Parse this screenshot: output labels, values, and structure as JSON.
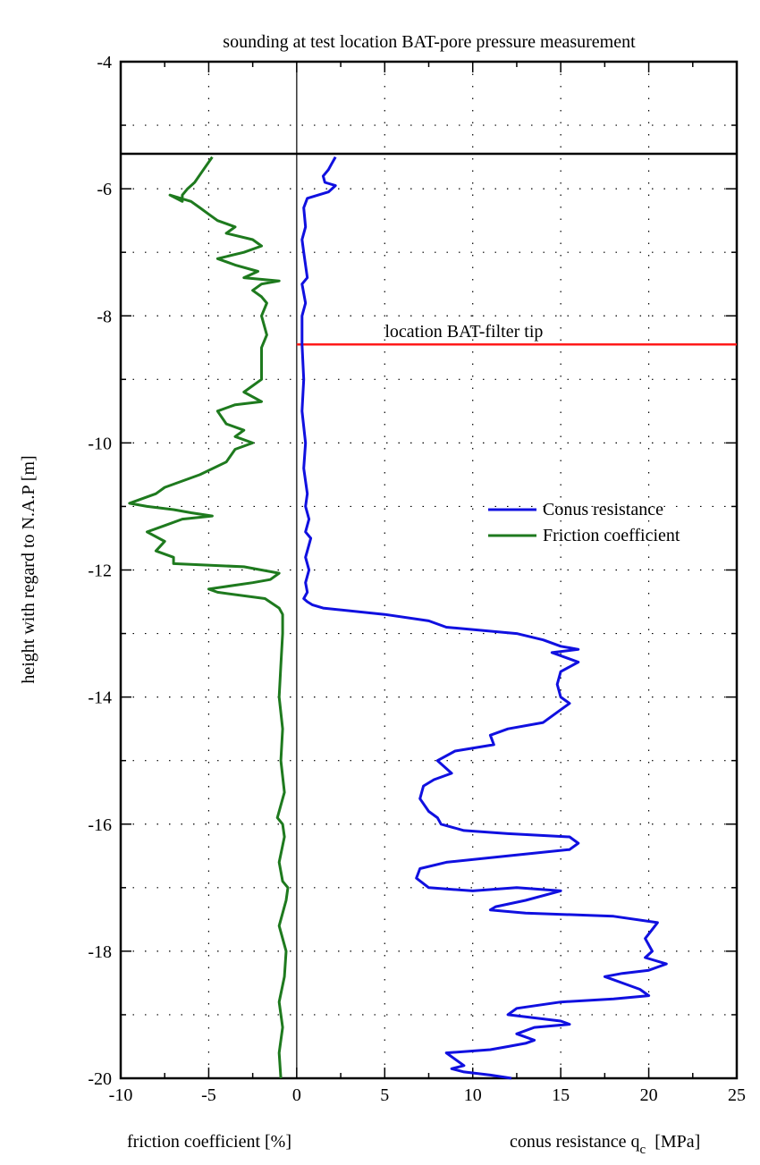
{
  "chart_data": {
    "type": "line",
    "title": "sounding at test location BAT-pore pressure measurement",
    "ylabel": "height with regard to N.A.P  [m]",
    "xlabel_left": "friction coefficient  [%]",
    "xlabel_right_main": "conus resistance q",
    "xlabel_right_sub": "c",
    "xlabel_right_unit": "[MPa]",
    "xlim": [
      -10,
      25
    ],
    "ylim": [
      -20,
      -4
    ],
    "x_ticks": [
      -10,
      -5,
      0,
      5,
      10,
      15,
      20,
      25
    ],
    "y_ticks": [
      -4,
      -6,
      -8,
      -10,
      -12,
      -14,
      -16,
      -18,
      -20
    ],
    "grid": "dotted",
    "legend_position": "center-right",
    "ground_level": -5.45,
    "filter_tip": {
      "label": "location  BAT-filter tip",
      "y": -8.45
    },
    "colors": {
      "conus": "#1010e0",
      "friction": "#1e7a1e",
      "filter": "#ff1a1a",
      "axis": "#000000"
    },
    "series": [
      {
        "name": "Conus resistance",
        "x": [
          2.2,
          2.0,
          1.8,
          1.5,
          1.6,
          2.2,
          1.8,
          0.6,
          0.4,
          0.5,
          0.3,
          0.4,
          0.6,
          0.3,
          0.5,
          0.3,
          0.3,
          0.4,
          0.3,
          0.5,
          0.4,
          0.6,
          0.5,
          0.7,
          0.5,
          0.8,
          0.6,
          0.5,
          0.7,
          0.5,
          0.6,
          0.4,
          0.6,
          0.9,
          1.5,
          5.0,
          7.5,
          8.5,
          12.5,
          14.0,
          15.0,
          16.0,
          14.5,
          16.0,
          15.0,
          14.8,
          15.0,
          15.5,
          15.0,
          14.0,
          12.0,
          11.0,
          11.2,
          9.0,
          8.0,
          8.8,
          7.8,
          7.2,
          7.0,
          7.5,
          8.0,
          8.2,
          9.5,
          12.0,
          15.5,
          16.0,
          15.5,
          12.0,
          8.5,
          7.0,
          6.8,
          7.5,
          10.0,
          12.5,
          15.0,
          13.0,
          11.3,
          11.0,
          13.0,
          18.0,
          20.5,
          19.8,
          20.2,
          19.8,
          21.0,
          20.0,
          18.5,
          17.5,
          18.5,
          19.5,
          20.0,
          18.0,
          15.0,
          12.5,
          12.0,
          15.0,
          15.5,
          13.5,
          12.5,
          13.5,
          13.0,
          12.0,
          11.0,
          8.5,
          9.0,
          9.5,
          8.8,
          9.5,
          11.0,
          12.2
        ],
        "y": [
          -5.5,
          -5.6,
          -5.7,
          -5.8,
          -5.9,
          -5.95,
          -6.05,
          -6.15,
          -6.3,
          -6.6,
          -6.8,
          -7.0,
          -7.4,
          -7.5,
          -7.8,
          -8.0,
          -8.45,
          -9.0,
          -9.5,
          -10.0,
          -10.4,
          -10.8,
          -11.0,
          -11.2,
          -11.4,
          -11.5,
          -11.7,
          -11.8,
          -12.0,
          -12.2,
          -12.35,
          -12.45,
          -12.5,
          -12.55,
          -12.6,
          -12.7,
          -12.8,
          -12.9,
          -13.0,
          -13.1,
          -13.2,
          -13.25,
          -13.3,
          -13.45,
          -13.6,
          -13.8,
          -14.0,
          -14.1,
          -14.2,
          -14.4,
          -14.5,
          -14.6,
          -14.75,
          -14.85,
          -15.0,
          -15.2,
          -15.3,
          -15.4,
          -15.6,
          -15.8,
          -15.9,
          -16.0,
          -16.1,
          -16.15,
          -16.2,
          -16.3,
          -16.4,
          -16.5,
          -16.6,
          -16.7,
          -16.85,
          -17.0,
          -17.05,
          -17.0,
          -17.05,
          -17.2,
          -17.3,
          -17.35,
          -17.4,
          -17.45,
          -17.55,
          -17.8,
          -18.0,
          -18.1,
          -18.2,
          -18.3,
          -18.35,
          -18.4,
          -18.5,
          -18.6,
          -18.7,
          -18.75,
          -18.8,
          -18.9,
          -19.0,
          -19.1,
          -19.15,
          -19.2,
          -19.3,
          -19.4,
          -19.45,
          -19.5,
          -19.55,
          -19.6,
          -19.7,
          -19.8,
          -19.85,
          -19.9,
          -19.95,
          -20.0
        ]
      },
      {
        "name": "Friction coefficient",
        "x": [
          -4.8,
          -5.3,
          -5.8,
          -6.2,
          -6.5,
          -6.5,
          -7.2,
          -6.0,
          -5.5,
          -5.0,
          -4.5,
          -4.0,
          -3.5,
          -4.0,
          -2.5,
          -2.0,
          -3.0,
          -4.5,
          -3.5,
          -2.2,
          -3.0,
          -1.0,
          -2.0,
          -2.5,
          -2.0,
          -1.7,
          -2.0,
          -1.7,
          -2.0,
          -2.0,
          -2.0,
          -3.0,
          -2.0,
          -3.5,
          -4.5,
          -4.0,
          -3.0,
          -3.5,
          -2.5,
          -3.5,
          -4.0,
          -5.5,
          -6.5,
          -7.5,
          -8.0,
          -9.0,
          -9.5,
          -8.5,
          -7.0,
          -6.0,
          -4.8,
          -6.5,
          -7.5,
          -8.5,
          -7.5,
          -8.0,
          -7.0,
          -7.0,
          -3.0,
          -1.0,
          -1.5,
          -2.5,
          -5.0,
          -4.5,
          -1.8,
          -1.0,
          -0.8,
          -0.8,
          -0.9,
          -1.0,
          -0.8,
          -0.9,
          -0.7,
          -1.1,
          -0.8,
          -0.7,
          -1.0,
          -0.8,
          -0.5,
          -0.6,
          -1.0,
          -0.8,
          -0.6,
          -0.7,
          -1.0,
          -0.8,
          -1.0,
          -0.9
        ],
        "y": [
          -5.5,
          -5.7,
          -5.9,
          -6.0,
          -6.1,
          -6.2,
          -6.1,
          -6.2,
          -6.3,
          -6.4,
          -6.5,
          -6.55,
          -6.6,
          -6.7,
          -6.8,
          -6.9,
          -7.0,
          -7.1,
          -7.2,
          -7.3,
          -7.4,
          -7.45,
          -7.5,
          -7.6,
          -7.7,
          -7.8,
          -8.0,
          -8.3,
          -8.5,
          -8.8,
          -9.0,
          -9.2,
          -9.35,
          -9.4,
          -9.5,
          -9.7,
          -9.8,
          -9.9,
          -10.0,
          -10.1,
          -10.3,
          -10.5,
          -10.6,
          -10.7,
          -10.8,
          -10.9,
          -10.95,
          -11.0,
          -11.05,
          -11.1,
          -11.15,
          -11.2,
          -11.3,
          -11.4,
          -11.55,
          -11.7,
          -11.8,
          -11.9,
          -11.95,
          -12.05,
          -12.15,
          -12.2,
          -12.3,
          -12.35,
          -12.45,
          -12.6,
          -12.7,
          -13.0,
          -13.5,
          -14.0,
          -14.5,
          -15.0,
          -15.5,
          -15.9,
          -16.0,
          -16.2,
          -16.6,
          -16.9,
          -17.0,
          -17.2,
          -17.6,
          -17.8,
          -18.0,
          -18.4,
          -18.8,
          -19.2,
          -19.6,
          -20.0
        ]
      }
    ]
  }
}
